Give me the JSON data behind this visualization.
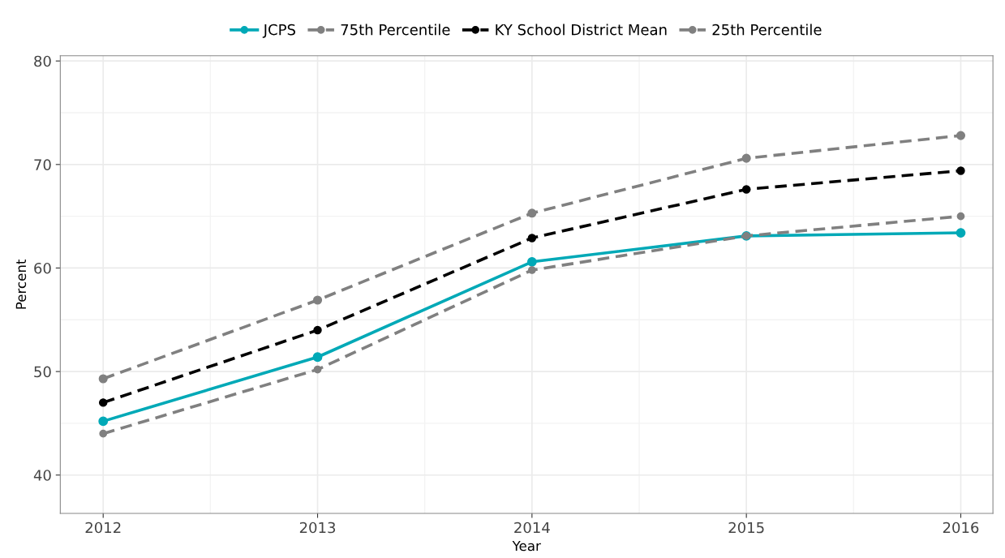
{
  "chart_data": {
    "type": "line",
    "xlabel": "Year",
    "ylabel": "Percent",
    "x": [
      2012,
      2013,
      2014,
      2015,
      2016
    ],
    "series": [
      {
        "name": "JCPS",
        "color": "#00a9b7",
        "line_style": "solid",
        "values": [
          45.2,
          51.4,
          60.6,
          63.1,
          63.4
        ]
      },
      {
        "name": "75th Percentile",
        "color": "#808080",
        "line_style": "dashed",
        "values": [
          49.3,
          56.9,
          65.3,
          70.6,
          72.8
        ]
      },
      {
        "name": "KY School District Mean",
        "color": "#000000",
        "line_style": "dashed",
        "values": [
          47.0,
          54.0,
          62.9,
          67.6,
          69.4
        ]
      },
      {
        "name": "25th Percentile",
        "color": "#808080",
        "line_style": "dashed",
        "values": [
          44.0,
          50.2,
          59.8,
          63.1,
          65.0
        ]
      }
    ],
    "xlim": [
      2011.8,
      2016.15
    ],
    "xticks": [
      2012,
      2013,
      2014,
      2015,
      2016
    ],
    "ylim": [
      36.3,
      80.5
    ],
    "yticks": [
      40,
      50,
      60,
      70,
      80
    ],
    "grid": true,
    "legend": "top",
    "marker": "circle"
  }
}
